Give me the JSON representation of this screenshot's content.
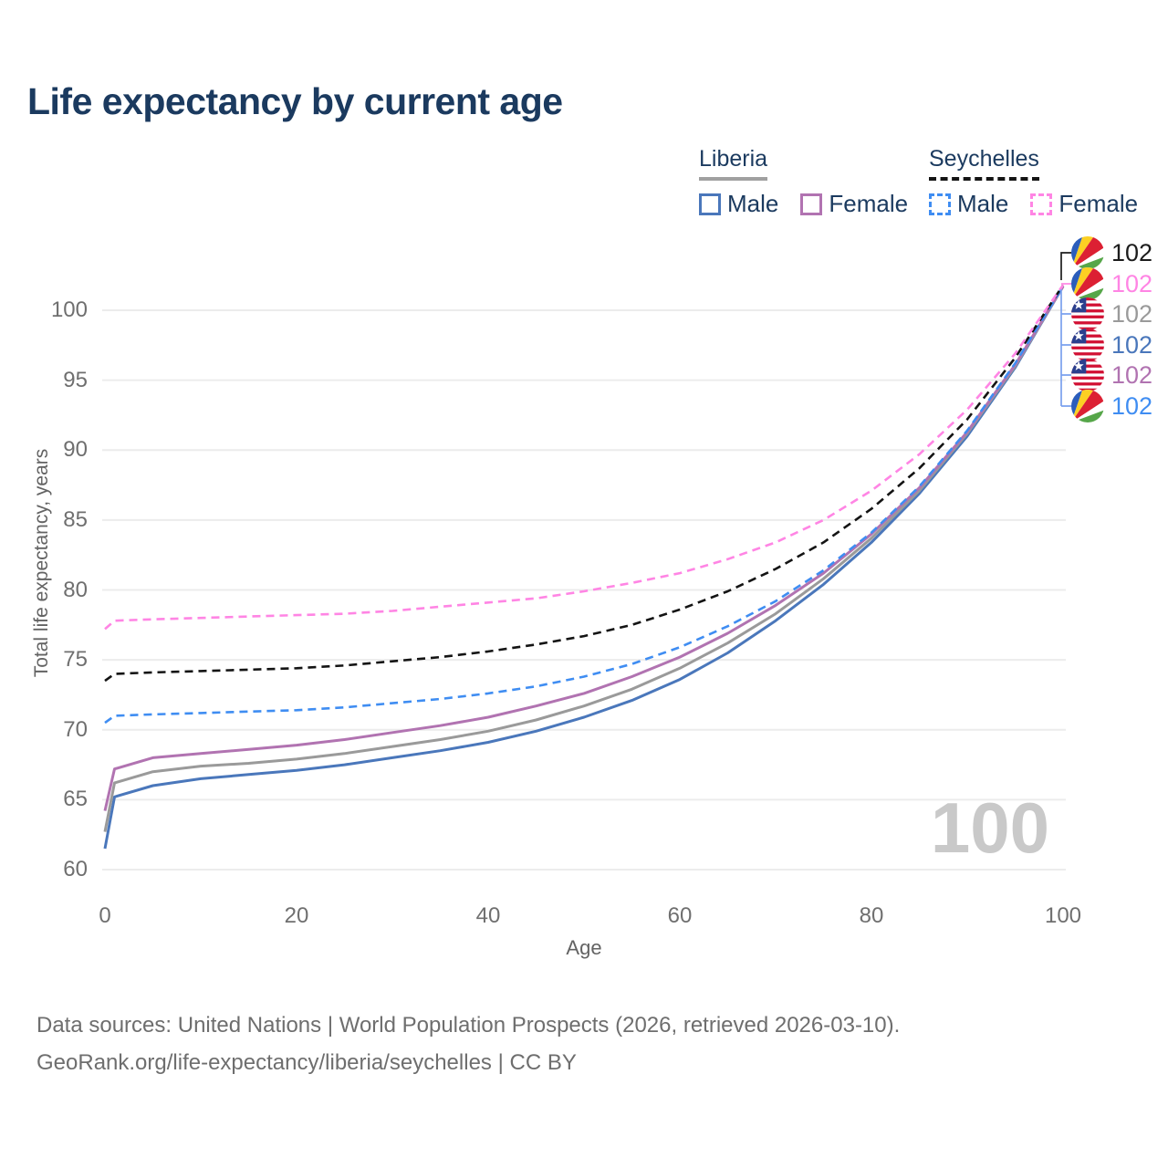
{
  "title": "Life expectancy by current age",
  "legend": {
    "groups": [
      {
        "name": "Liberia",
        "line_style": "solid",
        "underline_color": "#a0a0a0",
        "items": [
          {
            "label": "Male",
            "color": "#4a77bb"
          },
          {
            "label": "Female",
            "color": "#b173b1"
          }
        ]
      },
      {
        "name": "Seychelles",
        "line_style": "dashed",
        "underline_color": "#141414",
        "items": [
          {
            "label": "Male",
            "color": "#3f8df2"
          },
          {
            "label": "Female",
            "color": "#ff85e4"
          }
        ]
      }
    ]
  },
  "y_axis": {
    "title": "Total life expectancy, years",
    "ticks": [
      60,
      65,
      70,
      75,
      80,
      85,
      90,
      95,
      100
    ]
  },
  "x_axis": {
    "title": "Age",
    "ticks": [
      0,
      20,
      40,
      60,
      80,
      100
    ]
  },
  "watermark": "100",
  "end_labels": [
    {
      "flag": "seychelles-flag-icon",
      "series": "Seychelles",
      "value": "102",
      "color": "#1c1c1c"
    },
    {
      "flag": "seychelles-flag-icon",
      "series": "Seychelles Female",
      "value": "102",
      "color": "#ff85e4"
    },
    {
      "flag": "liberia-flag-icon",
      "series": "Liberia",
      "value": "102",
      "color": "#9a9a9a"
    },
    {
      "flag": "liberia-flag-icon",
      "series": "Liberia Male",
      "value": "102",
      "color": "#4a77bb"
    },
    {
      "flag": "liberia-flag-icon",
      "series": "Liberia Female",
      "value": "102",
      "color": "#b173b1"
    },
    {
      "flag": "seychelles-flag-icon",
      "series": "Seychelles Male",
      "value": "102",
      "color": "#3f8df2"
    }
  ],
  "footer": {
    "line1": "Data sources: United Nations | World Population Prospects (2026, retrieved 2026-03-10).",
    "line2": "GeoRank.org/life-expectancy/liberia/seychelles | CC BY"
  },
  "chart_data": {
    "type": "line",
    "title": "Life expectancy by current age",
    "xlabel": "Age",
    "ylabel": "Total life expectancy, years",
    "xlim": [
      0,
      100
    ],
    "ylim": [
      58.5,
      103
    ],
    "grid": "horizontal",
    "legend_position": "top-right",
    "x": [
      0,
      1,
      5,
      10,
      15,
      20,
      25,
      30,
      35,
      40,
      45,
      50,
      55,
      60,
      65,
      70,
      75,
      80,
      85,
      90,
      95,
      100
    ],
    "series": [
      {
        "name": "Liberia Male",
        "country": "Liberia",
        "sex": "Male",
        "style": "solid",
        "color": "#4a77bb",
        "values": [
          61.5,
          65.2,
          66.0,
          66.5,
          66.8,
          67.1,
          67.5,
          68.0,
          68.5,
          69.1,
          69.9,
          70.9,
          72.1,
          73.6,
          75.5,
          77.8,
          80.4,
          83.4,
          86.9,
          91.0,
          95.9,
          101.7
        ]
      },
      {
        "name": "Liberia",
        "country": "Liberia",
        "sex": "Both",
        "style": "solid",
        "color": "#9a9a9a",
        "values": [
          62.7,
          66.2,
          67.0,
          67.4,
          67.6,
          67.9,
          68.3,
          68.8,
          69.3,
          69.9,
          70.7,
          71.7,
          72.9,
          74.4,
          76.2,
          78.3,
          80.8,
          83.7,
          87.1,
          91.2,
          96.0,
          101.7
        ]
      },
      {
        "name": "Liberia Female",
        "country": "Liberia",
        "sex": "Female",
        "style": "solid",
        "color": "#b173b1",
        "values": [
          64.2,
          67.2,
          68.0,
          68.3,
          68.6,
          68.9,
          69.3,
          69.8,
          70.3,
          70.9,
          71.7,
          72.6,
          73.8,
          75.2,
          76.9,
          78.9,
          81.2,
          84.0,
          87.3,
          91.3,
          96.1,
          101.7
        ]
      },
      {
        "name": "Seychelles Male",
        "country": "Seychelles",
        "sex": "Male",
        "style": "dashed",
        "color": "#3f8df2",
        "values": [
          70.5,
          71.0,
          71.1,
          71.2,
          71.3,
          71.4,
          71.6,
          71.9,
          72.2,
          72.6,
          73.1,
          73.8,
          74.7,
          75.9,
          77.4,
          79.2,
          81.4,
          84.1,
          87.4,
          91.4,
          96.2,
          101.7
        ]
      },
      {
        "name": "Seychelles",
        "country": "Seychelles",
        "sex": "Both",
        "style": "dashed",
        "color": "#141414",
        "values": [
          73.5,
          74.0,
          74.1,
          74.2,
          74.3,
          74.4,
          74.6,
          74.9,
          75.2,
          75.6,
          76.1,
          76.7,
          77.5,
          78.6,
          79.9,
          81.5,
          83.4,
          85.8,
          88.7,
          92.2,
          96.6,
          101.8
        ]
      },
      {
        "name": "Seychelles Female",
        "country": "Seychelles",
        "sex": "Female",
        "style": "dashed",
        "color": "#ff85e4",
        "values": [
          77.2,
          77.8,
          77.9,
          78.0,
          78.1,
          78.2,
          78.3,
          78.5,
          78.8,
          79.1,
          79.4,
          79.9,
          80.5,
          81.2,
          82.2,
          83.4,
          85.0,
          87.1,
          89.7,
          92.9,
          96.9,
          101.8
        ]
      }
    ]
  }
}
